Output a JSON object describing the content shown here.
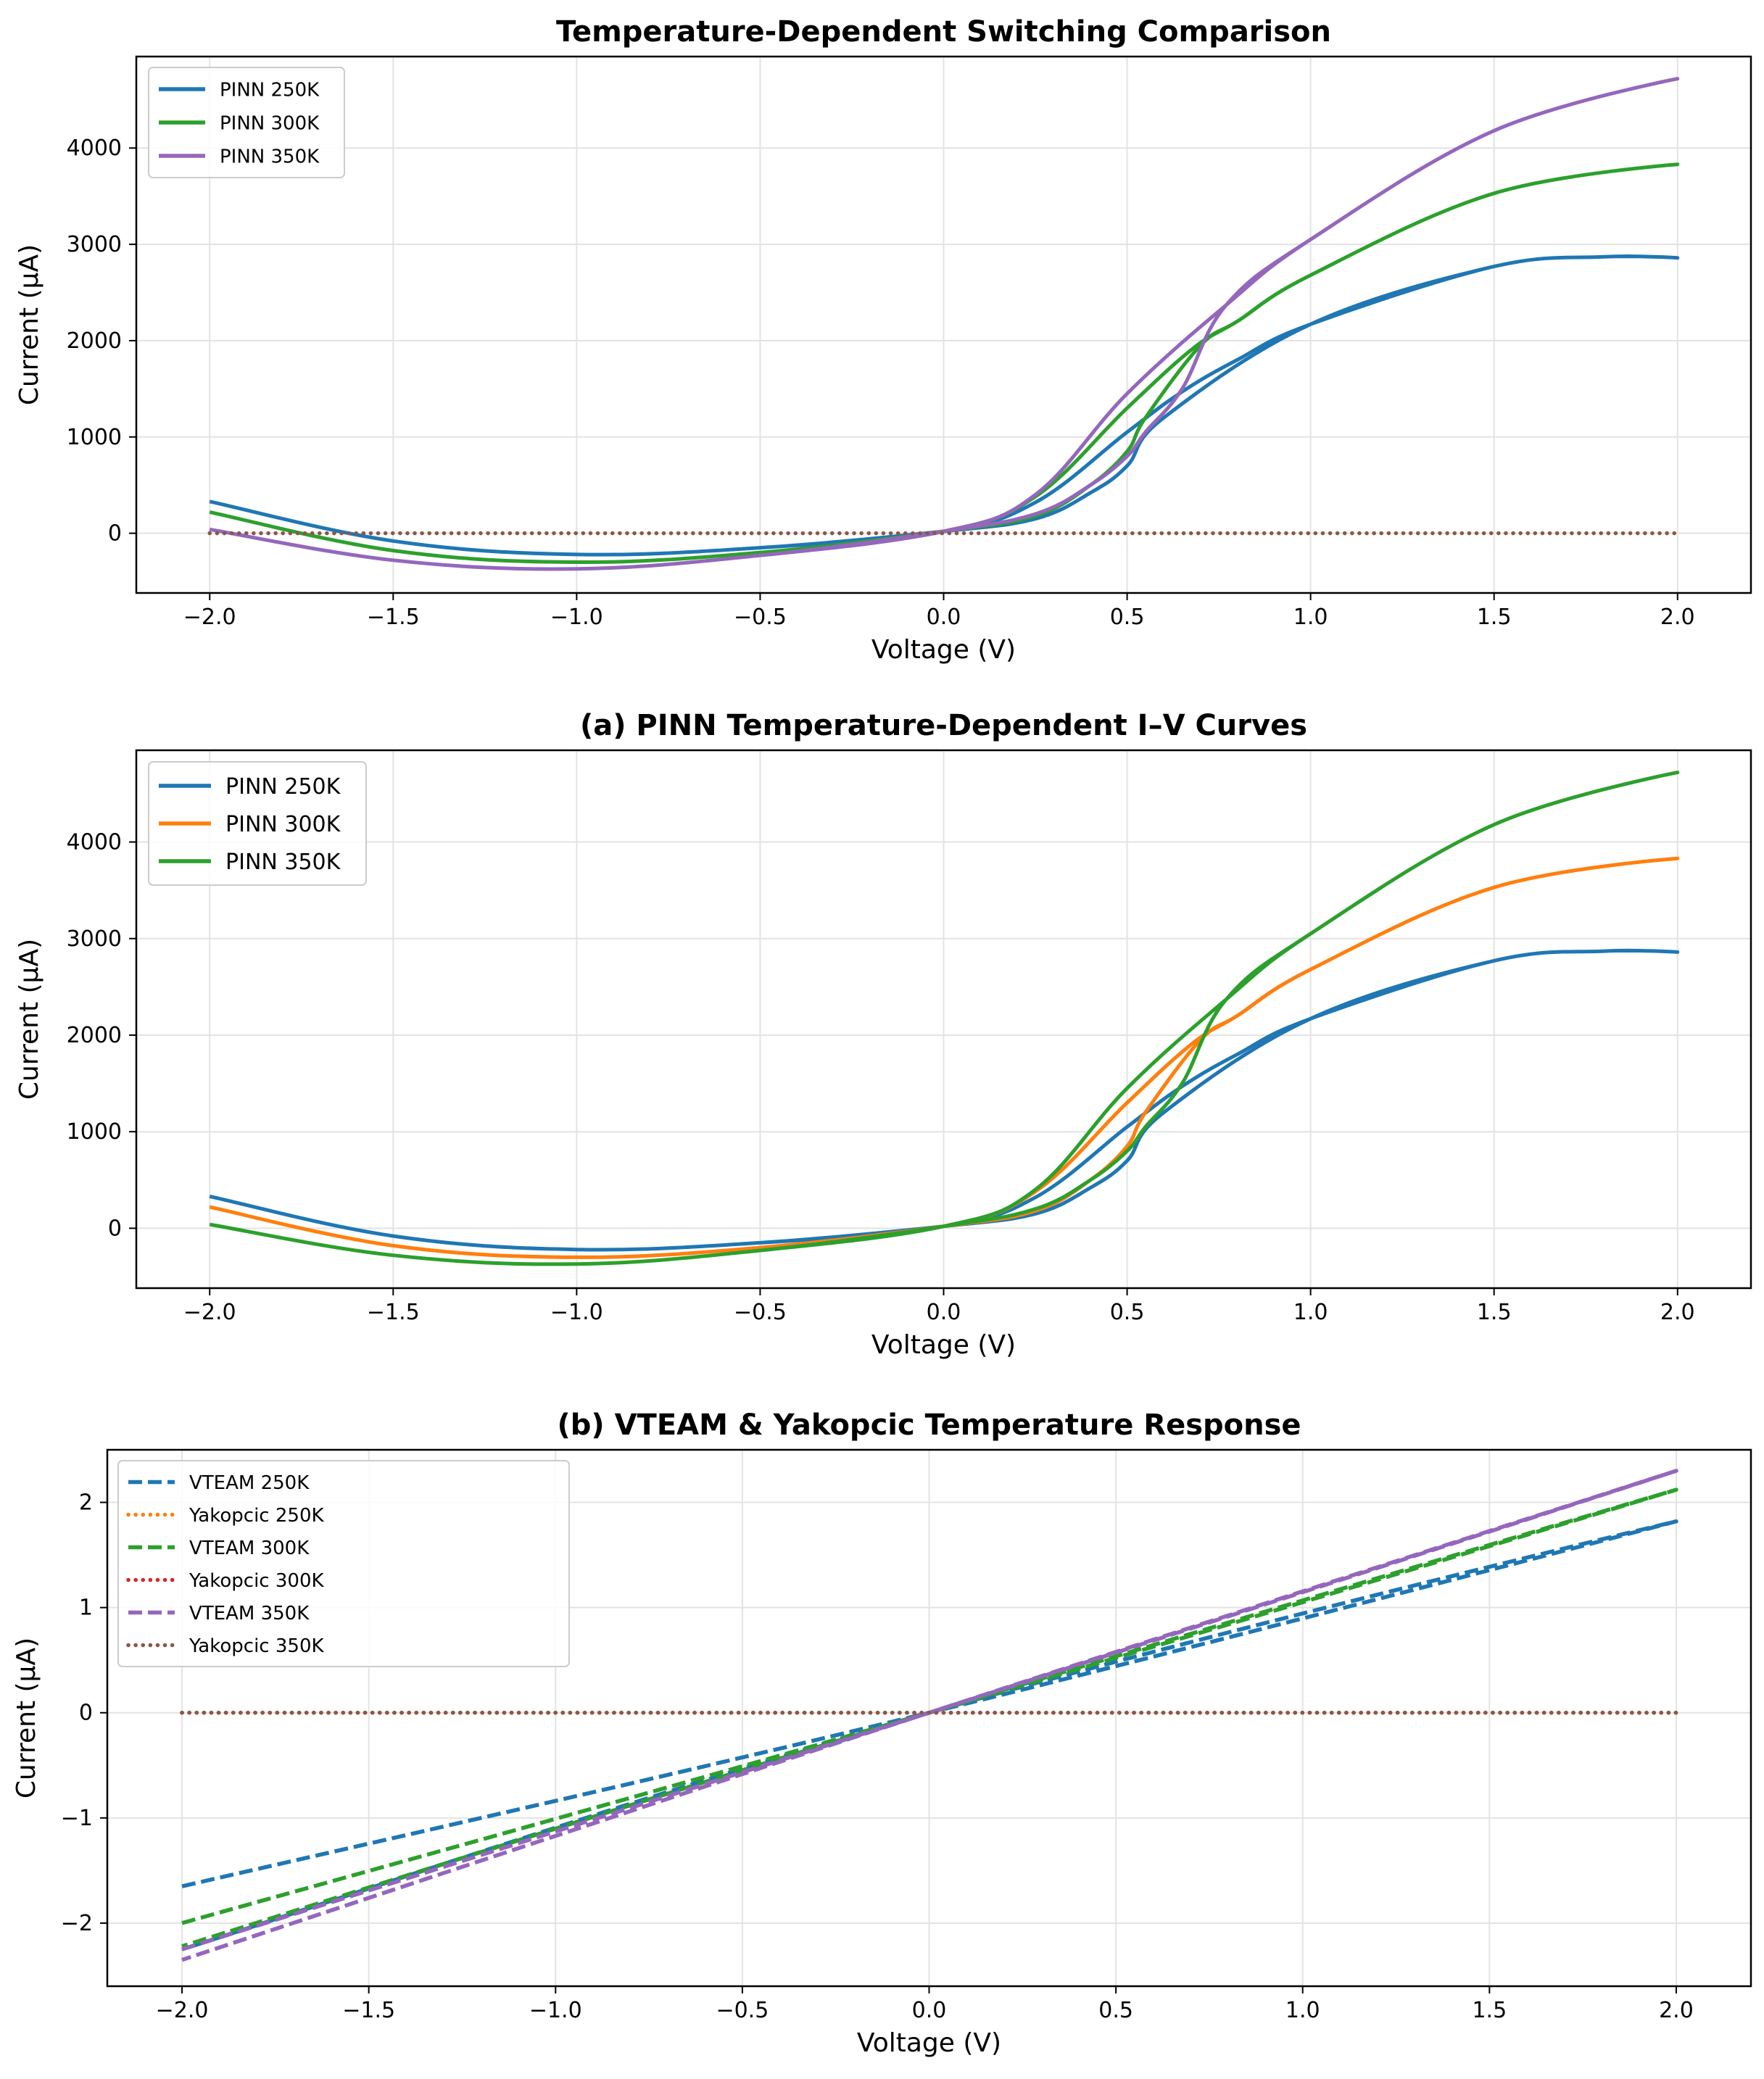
{
  "chart_data": [
    {
      "type": "line",
      "title": "Temperature-Dependent Switching Comparison",
      "xlabel": "Voltage (V)",
      "ylabel": "Current (μA)",
      "xlim": [
        -2.2,
        2.2
      ],
      "ylim": [
        -620,
        4950
      ],
      "xticks": [
        -2.0,
        -1.5,
        -1.0,
        -0.5,
        0.0,
        0.5,
        1.0,
        1.5,
        2.0
      ],
      "yticks": [
        0,
        1000,
        2000,
        3000,
        4000
      ],
      "grid": true,
      "legend_position": "top-left",
      "series": [
        {
          "name": "PINN 250K",
          "color": "#1f77b4",
          "style": "solid",
          "legend": true,
          "x": [
            -2.0,
            -1.5,
            -1.0,
            -0.5,
            0.0,
            0.25,
            0.5,
            0.65,
            0.8,
            1.0,
            1.5,
            1.8,
            2.0,
            1.8,
            1.5,
            1.0,
            0.6,
            0.5,
            0.4,
            0.25,
            0.0,
            -0.5,
            -1.0,
            -1.5,
            -2.0
          ],
          "y": [
            330,
            -80,
            -220,
            -150,
            20,
            320,
            1050,
            1470,
            1800,
            2170,
            2770,
            2870,
            2860,
            2870,
            2770,
            2170,
            1200,
            700,
            420,
            150,
            20,
            -150,
            -220,
            -80,
            330
          ]
        },
        {
          "name": "PINN 300K",
          "color": "#2ca02c",
          "style": "solid",
          "legend": true,
          "x": [
            -2.0,
            -1.5,
            -1.0,
            -0.5,
            0.0,
            0.25,
            0.5,
            0.68,
            0.8,
            1.0,
            1.5,
            2.0,
            1.5,
            1.0,
            0.8,
            0.7,
            0.55,
            0.5,
            0.4,
            0.25,
            0.0,
            -0.5,
            -1.0,
            -1.5,
            -2.0
          ],
          "y": [
            220,
            -180,
            -300,
            -200,
            20,
            380,
            1300,
            1920,
            2200,
            2680,
            3530,
            3830,
            3530,
            2680,
            2200,
            1950,
            1200,
            850,
            500,
            180,
            20,
            -200,
            -300,
            -180,
            220
          ]
        },
        {
          "name": "PINN 350K",
          "color": "#9467bd",
          "style": "solid",
          "legend": true,
          "x": [
            -2.0,
            -1.5,
            -1.0,
            -0.5,
            0.0,
            0.25,
            0.5,
            0.77,
            1.0,
            1.5,
            2.0,
            1.5,
            1.0,
            0.77,
            0.65,
            0.55,
            0.5,
            0.4,
            0.25,
            0.0,
            -0.5,
            -1.0,
            -1.5,
            -2.0
          ],
          "y": [
            40,
            -280,
            -370,
            -230,
            20,
            400,
            1450,
            2370,
            3050,
            4180,
            4720,
            4180,
            3050,
            2370,
            1500,
            1050,
            800,
            500,
            200,
            20,
            -230,
            -370,
            -280,
            40
          ]
        },
        {
          "name": "",
          "color": "#8c564b",
          "style": "dotted",
          "legend": false,
          "x": [
            -2.0,
            2.0
          ],
          "y": [
            0,
            0
          ]
        }
      ]
    },
    {
      "type": "line",
      "title": "(a) PINN Temperature-Dependent I–V Curves",
      "xlabel": "Voltage (V)",
      "ylabel": "Current (μA)",
      "xlim": [
        -2.2,
        2.2
      ],
      "ylim": [
        -620,
        4950
      ],
      "xticks": [
        -2.0,
        -1.5,
        -1.0,
        -0.5,
        0.0,
        0.5,
        1.0,
        1.5,
        2.0
      ],
      "yticks": [
        0,
        1000,
        2000,
        3000,
        4000
      ],
      "grid": true,
      "legend_position": "top-left",
      "series": [
        {
          "name": "PINN 250K",
          "color": "#1f77b4",
          "style": "solid",
          "legend": true,
          "x": [
            -2.0,
            -1.5,
            -1.0,
            -0.5,
            0.0,
            0.25,
            0.5,
            0.65,
            0.8,
            1.0,
            1.5,
            1.8,
            2.0,
            1.8,
            1.5,
            1.0,
            0.6,
            0.5,
            0.4,
            0.25,
            0.0,
            -0.5,
            -1.0,
            -1.5,
            -2.0
          ],
          "y": [
            330,
            -80,
            -220,
            -150,
            20,
            320,
            1050,
            1470,
            1800,
            2170,
            2770,
            2870,
            2860,
            2870,
            2770,
            2170,
            1200,
            700,
            420,
            150,
            20,
            -150,
            -220,
            -80,
            330
          ]
        },
        {
          "name": "PINN 300K",
          "color": "#ff7f0e",
          "style": "solid",
          "legend": true,
          "x": [
            -2.0,
            -1.5,
            -1.0,
            -0.5,
            0.0,
            0.25,
            0.5,
            0.68,
            0.8,
            1.0,
            1.5,
            2.0,
            1.5,
            1.0,
            0.8,
            0.7,
            0.55,
            0.5,
            0.4,
            0.25,
            0.0,
            -0.5,
            -1.0,
            -1.5,
            -2.0
          ],
          "y": [
            220,
            -180,
            -300,
            -200,
            20,
            380,
            1300,
            1920,
            2200,
            2680,
            3530,
            3830,
            3530,
            2680,
            2200,
            1950,
            1200,
            850,
            500,
            180,
            20,
            -200,
            -300,
            -180,
            220
          ]
        },
        {
          "name": "PINN 350K",
          "color": "#2ca02c",
          "style": "solid",
          "legend": true,
          "x": [
            -2.0,
            -1.5,
            -1.0,
            -0.5,
            0.0,
            0.25,
            0.5,
            0.77,
            1.0,
            1.5,
            2.0,
            1.5,
            1.0,
            0.77,
            0.65,
            0.55,
            0.5,
            0.4,
            0.25,
            0.0,
            -0.5,
            -1.0,
            -1.5,
            -2.0
          ],
          "y": [
            40,
            -280,
            -370,
            -230,
            20,
            400,
            1450,
            2370,
            3050,
            4180,
            4720,
            4180,
            3050,
            2370,
            1500,
            1050,
            800,
            500,
            200,
            20,
            -230,
            -370,
            -280,
            40
          ]
        }
      ]
    },
    {
      "type": "line",
      "title": "(b) VTEAM & Yakopcic Temperature Response",
      "xlabel": "Voltage (V)",
      "ylabel": "Current (μA)",
      "xlim": [
        -2.2,
        2.2
      ],
      "ylim": [
        -2.6,
        2.5
      ],
      "xticks": [
        -2.0,
        -1.5,
        -1.0,
        -0.5,
        0.0,
        0.5,
        1.0,
        1.5,
        2.0
      ],
      "yticks": [
        -2,
        -1,
        0,
        1,
        2
      ],
      "grid": true,
      "legend_position": "top-left",
      "series": [
        {
          "name": "VTEAM 250K",
          "color": "#1f77b4",
          "style": "dashed",
          "legend": true,
          "x": [
            -2.0,
            0.0,
            2.0,
            0.0,
            -2.0
          ],
          "y": [
            -1.65,
            0.0,
            1.82,
            0.0,
            -2.25
          ]
        },
        {
          "name": "Yakopcic 250K",
          "color": "#ff7f0e",
          "style": "dotted",
          "legend": true,
          "x": [
            -2.0,
            2.0
          ],
          "y": [
            0,
            0
          ]
        },
        {
          "name": "VTEAM 300K",
          "color": "#2ca02c",
          "style": "dashed",
          "legend": true,
          "x": [
            -2.0,
            0.0,
            2.0,
            0.0,
            -2.0
          ],
          "y": [
            -2.0,
            0.0,
            2.12,
            0.0,
            -2.22
          ]
        },
        {
          "name": "Yakopcic 300K",
          "color": "#d62728",
          "style": "dotted",
          "legend": true,
          "x": [
            -2.0,
            2.0
          ],
          "y": [
            0,
            0
          ]
        },
        {
          "name": "VTEAM 350K",
          "color": "#9467bd",
          "style": "dashed",
          "legend": true,
          "x": [
            -2.0,
            0.0,
            2.0,
            0.0,
            -2.0
          ],
          "y": [
            -2.25,
            0.0,
            2.3,
            0.0,
            -2.35
          ]
        },
        {
          "name": "Yakopcic 350K",
          "color": "#8c564b",
          "style": "dotted",
          "legend": true,
          "x": [
            -2.0,
            2.0
          ],
          "y": [
            0,
            0
          ]
        }
      ]
    }
  ]
}
